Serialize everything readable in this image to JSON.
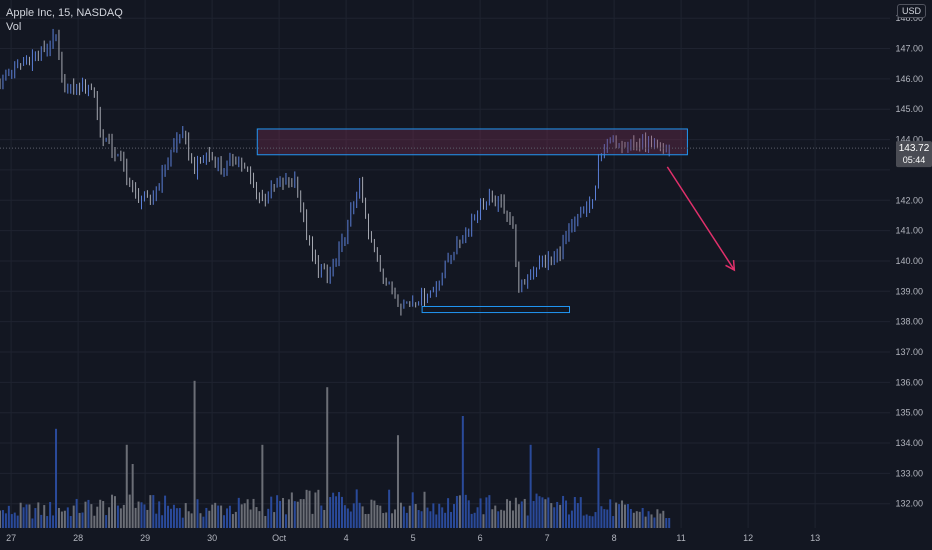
{
  "legend": {
    "symbol": "Apple Inc, 15, NASDAQ",
    "volume": "Vol"
  },
  "currency_button": "USD",
  "colors": {
    "background": "#131722",
    "grid": "#1f2330",
    "up": "#5b7fd6",
    "down": "#a5a8b1",
    "rect_stroke": "#2196f3",
    "rect_fill": "#7a2f52",
    "arrow": "#e0306b",
    "vol_up": "#2a4a9a",
    "vol_down": "#6b6e76",
    "label_bg": "#4a4c54",
    "text": "#b2b5be"
  },
  "chart_data": {
    "type": "candlestick",
    "title": "Apple Inc, 15, NASDAQ",
    "ylim": [
      131.2,
      148.6
    ],
    "y_ticks": [
      "132.00",
      "133.00",
      "134.00",
      "135.00",
      "136.00",
      "137.00",
      "138.00",
      "139.00",
      "140.00",
      "141.00",
      "142.00",
      "143.00",
      "144.00",
      "145.00",
      "146.00",
      "147.00",
      "148.00"
    ],
    "x_ticks": [
      "27",
      "28",
      "29",
      "30",
      "Oct",
      "4",
      "5",
      "6",
      "7",
      "8",
      "11",
      "12",
      "13"
    ],
    "x_tick_slots": [
      1.5,
      6.5,
      11.5,
      16.5,
      21.5,
      26.5,
      31.5,
      36.5,
      41.5,
      46.5,
      51.5,
      56.5,
      61.5
    ],
    "slot_count": 66,
    "price_path": [
      [
        0,
        145.9
      ],
      [
        1.5,
        146.5
      ],
      [
        3.5,
        147.0
      ],
      [
        4.2,
        147.4
      ],
      [
        4.5,
        146.1
      ],
      [
        5,
        145.6
      ],
      [
        6.5,
        145.8
      ],
      [
        7.0,
        145.6
      ],
      [
        7.5,
        144.2
      ],
      [
        8.5,
        143.6
      ],
      [
        9.3,
        143.1
      ],
      [
        10,
        142.1
      ],
      [
        11.3,
        142.0
      ],
      [
        12.5,
        143.3
      ],
      [
        13.5,
        144.3
      ],
      [
        14.5,
        143.0
      ],
      [
        15.5,
        143.6
      ],
      [
        16.5,
        143.0
      ],
      [
        17.5,
        143.4
      ],
      [
        18.5,
        142.9
      ],
      [
        19.5,
        142.0
      ],
      [
        21,
        142.6
      ],
      [
        22,
        142.7
      ],
      [
        23.3,
        140.1
      ],
      [
        24.5,
        139.4
      ],
      [
        25.5,
        140.5
      ],
      [
        26.8,
        142.5
      ],
      [
        27.5,
        140.9
      ],
      [
        28.5,
        139.6
      ],
      [
        29.8,
        138.6
      ],
      [
        31,
        138.7
      ],
      [
        32.5,
        139.1
      ],
      [
        33.5,
        140.1
      ],
      [
        34.5,
        140.8
      ],
      [
        35.5,
        141.6
      ],
      [
        36.5,
        142.0
      ],
      [
        37.5,
        141.9
      ],
      [
        38.3,
        141.0
      ],
      [
        38.7,
        139.0
      ],
      [
        39.5,
        139.6
      ],
      [
        40.5,
        140.0
      ],
      [
        41.5,
        140.1
      ],
      [
        42.3,
        140.8
      ],
      [
        43.3,
        141.5
      ],
      [
        44.0,
        141.9
      ],
      [
        44.4,
        142.1
      ],
      [
        44.7,
        143.4
      ],
      [
        45.5,
        144.0
      ],
      [
        47,
        143.9
      ],
      [
        48.5,
        143.8
      ],
      [
        49.5,
        143.6
      ],
      [
        50,
        143.8
      ]
    ],
    "volume_path": [
      [
        0,
        0.1
      ],
      [
        5,
        0.12
      ],
      [
        10,
        0.15
      ],
      [
        15,
        0.12
      ],
      [
        20,
        0.14
      ],
      [
        25,
        0.18
      ],
      [
        30,
        0.16
      ],
      [
        35,
        0.14
      ],
      [
        40,
        0.15
      ],
      [
        45,
        0.13
      ],
      [
        50,
        0.08
      ]
    ],
    "volume_spikes": [
      [
        4.2,
        0.62
      ],
      [
        9.5,
        0.52
      ],
      [
        10.0,
        0.4
      ],
      [
        14.6,
        0.92
      ],
      [
        19.6,
        0.52
      ],
      [
        24.4,
        0.88
      ],
      [
        29.6,
        0.58
      ],
      [
        34.6,
        0.7
      ],
      [
        39.6,
        0.52
      ],
      [
        44.6,
        0.5
      ]
    ],
    "last_price": "143.72",
    "last_price_value": 143.72,
    "countdown": "05:44",
    "resistance_zone": {
      "x_from": 19.2,
      "x_to": 51.3,
      "y_from": 143.5,
      "y_to": 144.35
    },
    "support_zone": {
      "x_from": 31.5,
      "x_to": 42.5,
      "y_from": 138.3,
      "y_to": 138.5
    },
    "forecast_arrow": {
      "from_x": 49.8,
      "from_y": 143.1,
      "to_x": 54.8,
      "to_y": 139.7
    }
  }
}
